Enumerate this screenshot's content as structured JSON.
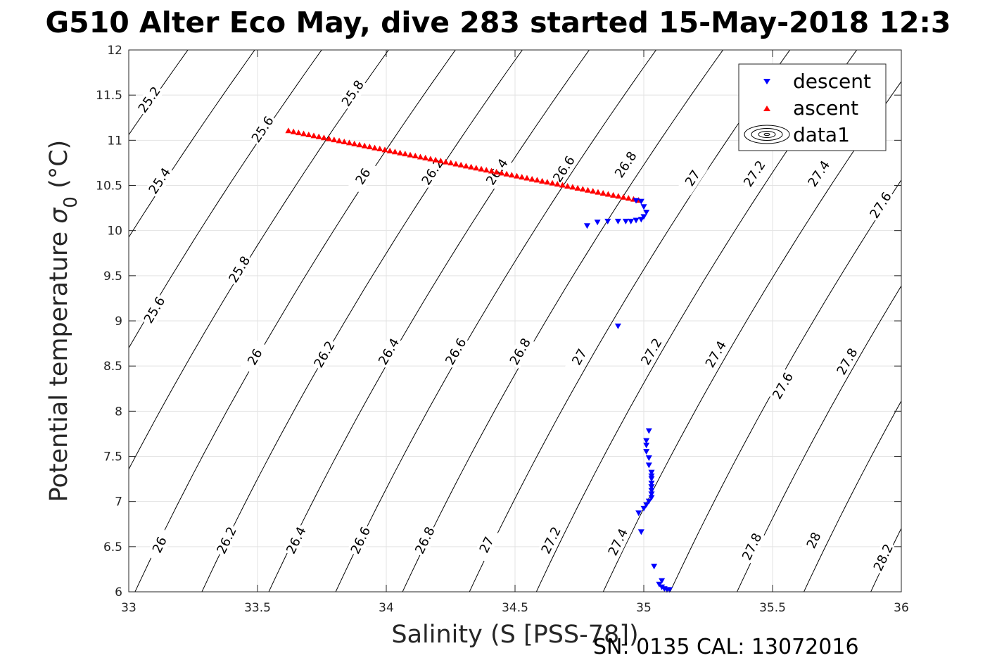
{
  "chart_data": {
    "type": "scatter",
    "title": "G510 Alter Eco May, dive 283 started 15-May-2018 12:3",
    "xlabel": "Salinity (S [PSS-78])",
    "ylabel_prefix": "Potential temperature ",
    "ylabel_symbol": "σ",
    "ylabel_subscript": "0",
    "ylabel_suffix": " (°C)",
    "footer": "SN: 0135  CAL: 13072016",
    "xlim": [
      33,
      36
    ],
    "ylim": [
      6,
      12
    ],
    "xticks": [
      33,
      33.5,
      34,
      34.5,
      35,
      35.5,
      36
    ],
    "yticks": [
      6,
      6.5,
      7,
      7.5,
      8,
      8.5,
      9,
      9.5,
      10,
      10.5,
      11,
      11.5,
      12
    ],
    "grid": true,
    "legend_position": "top-right",
    "legend": [
      {
        "label": "descent",
        "marker": "down-triangle",
        "color": "#0000ff"
      },
      {
        "label": "ascent",
        "marker": "up-triangle",
        "color": "#ff0000"
      },
      {
        "label": "data1",
        "marker": "contour",
        "color": "#000000"
      }
    ],
    "contour_levels": [
      25.2,
      25.4,
      25.6,
      25.8,
      26,
      26.2,
      26.4,
      26.6,
      26.8,
      27,
      27.2,
      27.4,
      27.6,
      27.8,
      28,
      28.2
    ],
    "contour_labels": [
      {
        "text": "25.2",
        "x": 33.08,
        "y": 11.45
      },
      {
        "text": "25.8",
        "x": 33.87,
        "y": 11.52
      },
      {
        "text": "25.6",
        "x": 33.52,
        "y": 11.12
      },
      {
        "text": "25.4",
        "x": 33.12,
        "y": 10.55
      },
      {
        "text": "26",
        "x": 33.91,
        "y": 10.6
      },
      {
        "text": "26.2",
        "x": 34.18,
        "y": 10.65
      },
      {
        "text": "26.4",
        "x": 34.43,
        "y": 10.65
      },
      {
        "text": "26.6",
        "x": 34.69,
        "y": 10.68
      },
      {
        "text": "26.8",
        "x": 34.93,
        "y": 10.73
      },
      {
        "text": "27",
        "x": 35.19,
        "y": 10.58
      },
      {
        "text": "27.2",
        "x": 35.43,
        "y": 10.63
      },
      {
        "text": "27.4",
        "x": 35.68,
        "y": 10.63
      },
      {
        "text": "27.6",
        "x": 35.92,
        "y": 10.28
      },
      {
        "text": "25.8",
        "x": 33.43,
        "y": 9.57
      },
      {
        "text": "25.6",
        "x": 33.1,
        "y": 9.12
      },
      {
        "text": "26",
        "x": 33.49,
        "y": 8.6
      },
      {
        "text": "26.2",
        "x": 33.76,
        "y": 8.63
      },
      {
        "text": "26.4",
        "x": 34.01,
        "y": 8.66
      },
      {
        "text": "26.6",
        "x": 34.27,
        "y": 8.66
      },
      {
        "text": "26.8",
        "x": 34.52,
        "y": 8.66
      },
      {
        "text": "27",
        "x": 34.75,
        "y": 8.6
      },
      {
        "text": "27.2",
        "x": 35.03,
        "y": 8.66
      },
      {
        "text": "27.4",
        "x": 35.28,
        "y": 8.63
      },
      {
        "text": "27.6",
        "x": 35.54,
        "y": 8.28
      },
      {
        "text": "27.8",
        "x": 35.79,
        "y": 8.55
      },
      {
        "text": "26",
        "x": 33.12,
        "y": 6.52
      },
      {
        "text": "26.2",
        "x": 33.38,
        "y": 6.57
      },
      {
        "text": "26.4",
        "x": 33.65,
        "y": 6.57
      },
      {
        "text": "26.6",
        "x": 33.9,
        "y": 6.57
      },
      {
        "text": "26.8",
        "x": 34.15,
        "y": 6.57
      },
      {
        "text": "27",
        "x": 34.39,
        "y": 6.52
      },
      {
        "text": "27.2",
        "x": 34.64,
        "y": 6.57
      },
      {
        "text": "27.4",
        "x": 34.9,
        "y": 6.55
      },
      {
        "text": "27.8",
        "x": 35.42,
        "y": 6.5
      },
      {
        "text": "28",
        "x": 35.66,
        "y": 6.57
      },
      {
        "text": "28.2",
        "x": 35.93,
        "y": 6.38
      }
    ],
    "series": [
      {
        "name": "descent",
        "color": "#0000ff",
        "marker": "down-triangle",
        "x": [
          34.97,
          34.99,
          35.0,
          35.01,
          35.0,
          34.99,
          34.97,
          34.95,
          34.93,
          34.9,
          34.86,
          34.82,
          34.78,
          34.9,
          35.02,
          35.01,
          35.01,
          35.01,
          35.02,
          35.02,
          35.03,
          35.03,
          35.03,
          35.03,
          35.03,
          35.03,
          35.03,
          35.03,
          35.02,
          35.01,
          35.0,
          34.98,
          34.99,
          35.04,
          35.07,
          35.06,
          35.07,
          35.08,
          35.09,
          35.1
        ],
        "y": [
          10.33,
          10.32,
          10.26,
          10.2,
          10.15,
          10.12,
          10.11,
          10.1,
          10.1,
          10.1,
          10.1,
          10.09,
          10.05,
          8.94,
          7.78,
          7.67,
          7.62,
          7.55,
          7.48,
          7.4,
          7.32,
          7.28,
          7.25,
          7.2,
          7.16,
          7.12,
          7.08,
          7.04,
          7.0,
          6.96,
          6.92,
          6.87,
          6.66,
          6.28,
          6.12,
          6.08,
          6.05,
          6.03,
          6.02,
          6.02
        ]
      },
      {
        "name": "ascent",
        "color": "#ff0000",
        "marker": "up-triangle",
        "x_start": 33.62,
        "x_end": 34.98,
        "y_start": 11.11,
        "y_end": 10.34,
        "count": 70
      }
    ]
  }
}
